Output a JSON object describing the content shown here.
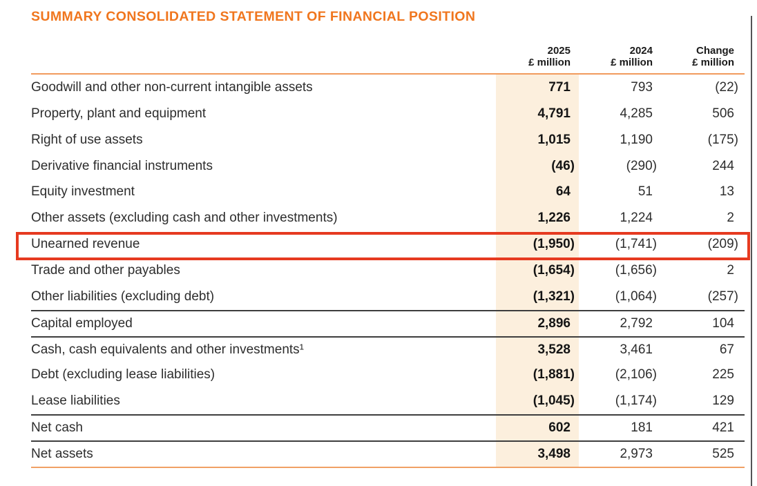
{
  "page": {
    "title": "SUMMARY CONSOLIDATED STATEMENT OF FINANCIAL POSITION"
  },
  "colors": {
    "title_orange": "#f0761e",
    "rule_orange": "#f19a5c",
    "rule_orange2": "#f0a065",
    "col_bg": "#fcefdd",
    "dark_rule": "#3d3d3d",
    "highlight_red": "#e63a20"
  },
  "table": {
    "columns": [
      {
        "year": "2025",
        "unit": "£ million"
      },
      {
        "year": "2024",
        "unit": "£ million"
      },
      {
        "year": "Change",
        "unit": "£ million"
      }
    ],
    "rows": [
      {
        "label": "Goodwill and other non-current intangible assets",
        "v2025": "771",
        "v2024": "793",
        "change": "(22)"
      },
      {
        "label": "Property, plant and equipment",
        "v2025": "4,791",
        "v2024": "4,285",
        "change": "506"
      },
      {
        "label": "Right of use assets",
        "v2025": "1,015",
        "v2024": "1,190",
        "change": "(175)"
      },
      {
        "label": "Derivative financial instruments",
        "v2025": "(46)",
        "v2024": "(290)",
        "change": "244"
      },
      {
        "label": "Equity investment",
        "v2025": "64",
        "v2024": "51",
        "change": "13"
      },
      {
        "label": "Other assets (excluding cash and other investments)",
        "v2025": "1,226",
        "v2024": "1,224",
        "change": "2"
      },
      {
        "label": "Unearned revenue",
        "v2025": "(1,950)",
        "v2024": "(1,741)",
        "change": "(209)",
        "highlighted": true
      },
      {
        "label": "Trade and other payables",
        "v2025": "(1,654)",
        "v2024": "(1,656)",
        "change": "2"
      },
      {
        "label": "Other liabilities (excluding debt)",
        "v2025": "(1,321)",
        "v2024": "(1,064)",
        "change": "(257)"
      },
      {
        "label": "Capital employed",
        "v2025": "2,896",
        "v2024": "2,792",
        "change": "104",
        "rule_above": true
      },
      {
        "label": "Cash, cash equivalents and other investments¹",
        "v2025": "3,528",
        "v2024": "3,461",
        "change": "67",
        "rule_above": true
      },
      {
        "label": "Debt (excluding lease liabilities)",
        "v2025": "(1,881)",
        "v2024": "(2,106)",
        "change": "225"
      },
      {
        "label": "Lease liabilities",
        "v2025": "(1,045)",
        "v2024": "(1,174)",
        "change": "129"
      },
      {
        "label": "Net cash",
        "v2025": "602",
        "v2024": "181",
        "change": "421",
        "rule_above": true
      },
      {
        "label": "Net assets",
        "v2025": "3,498",
        "v2024": "2,973",
        "change": "525",
        "rule_above": true
      }
    ]
  }
}
